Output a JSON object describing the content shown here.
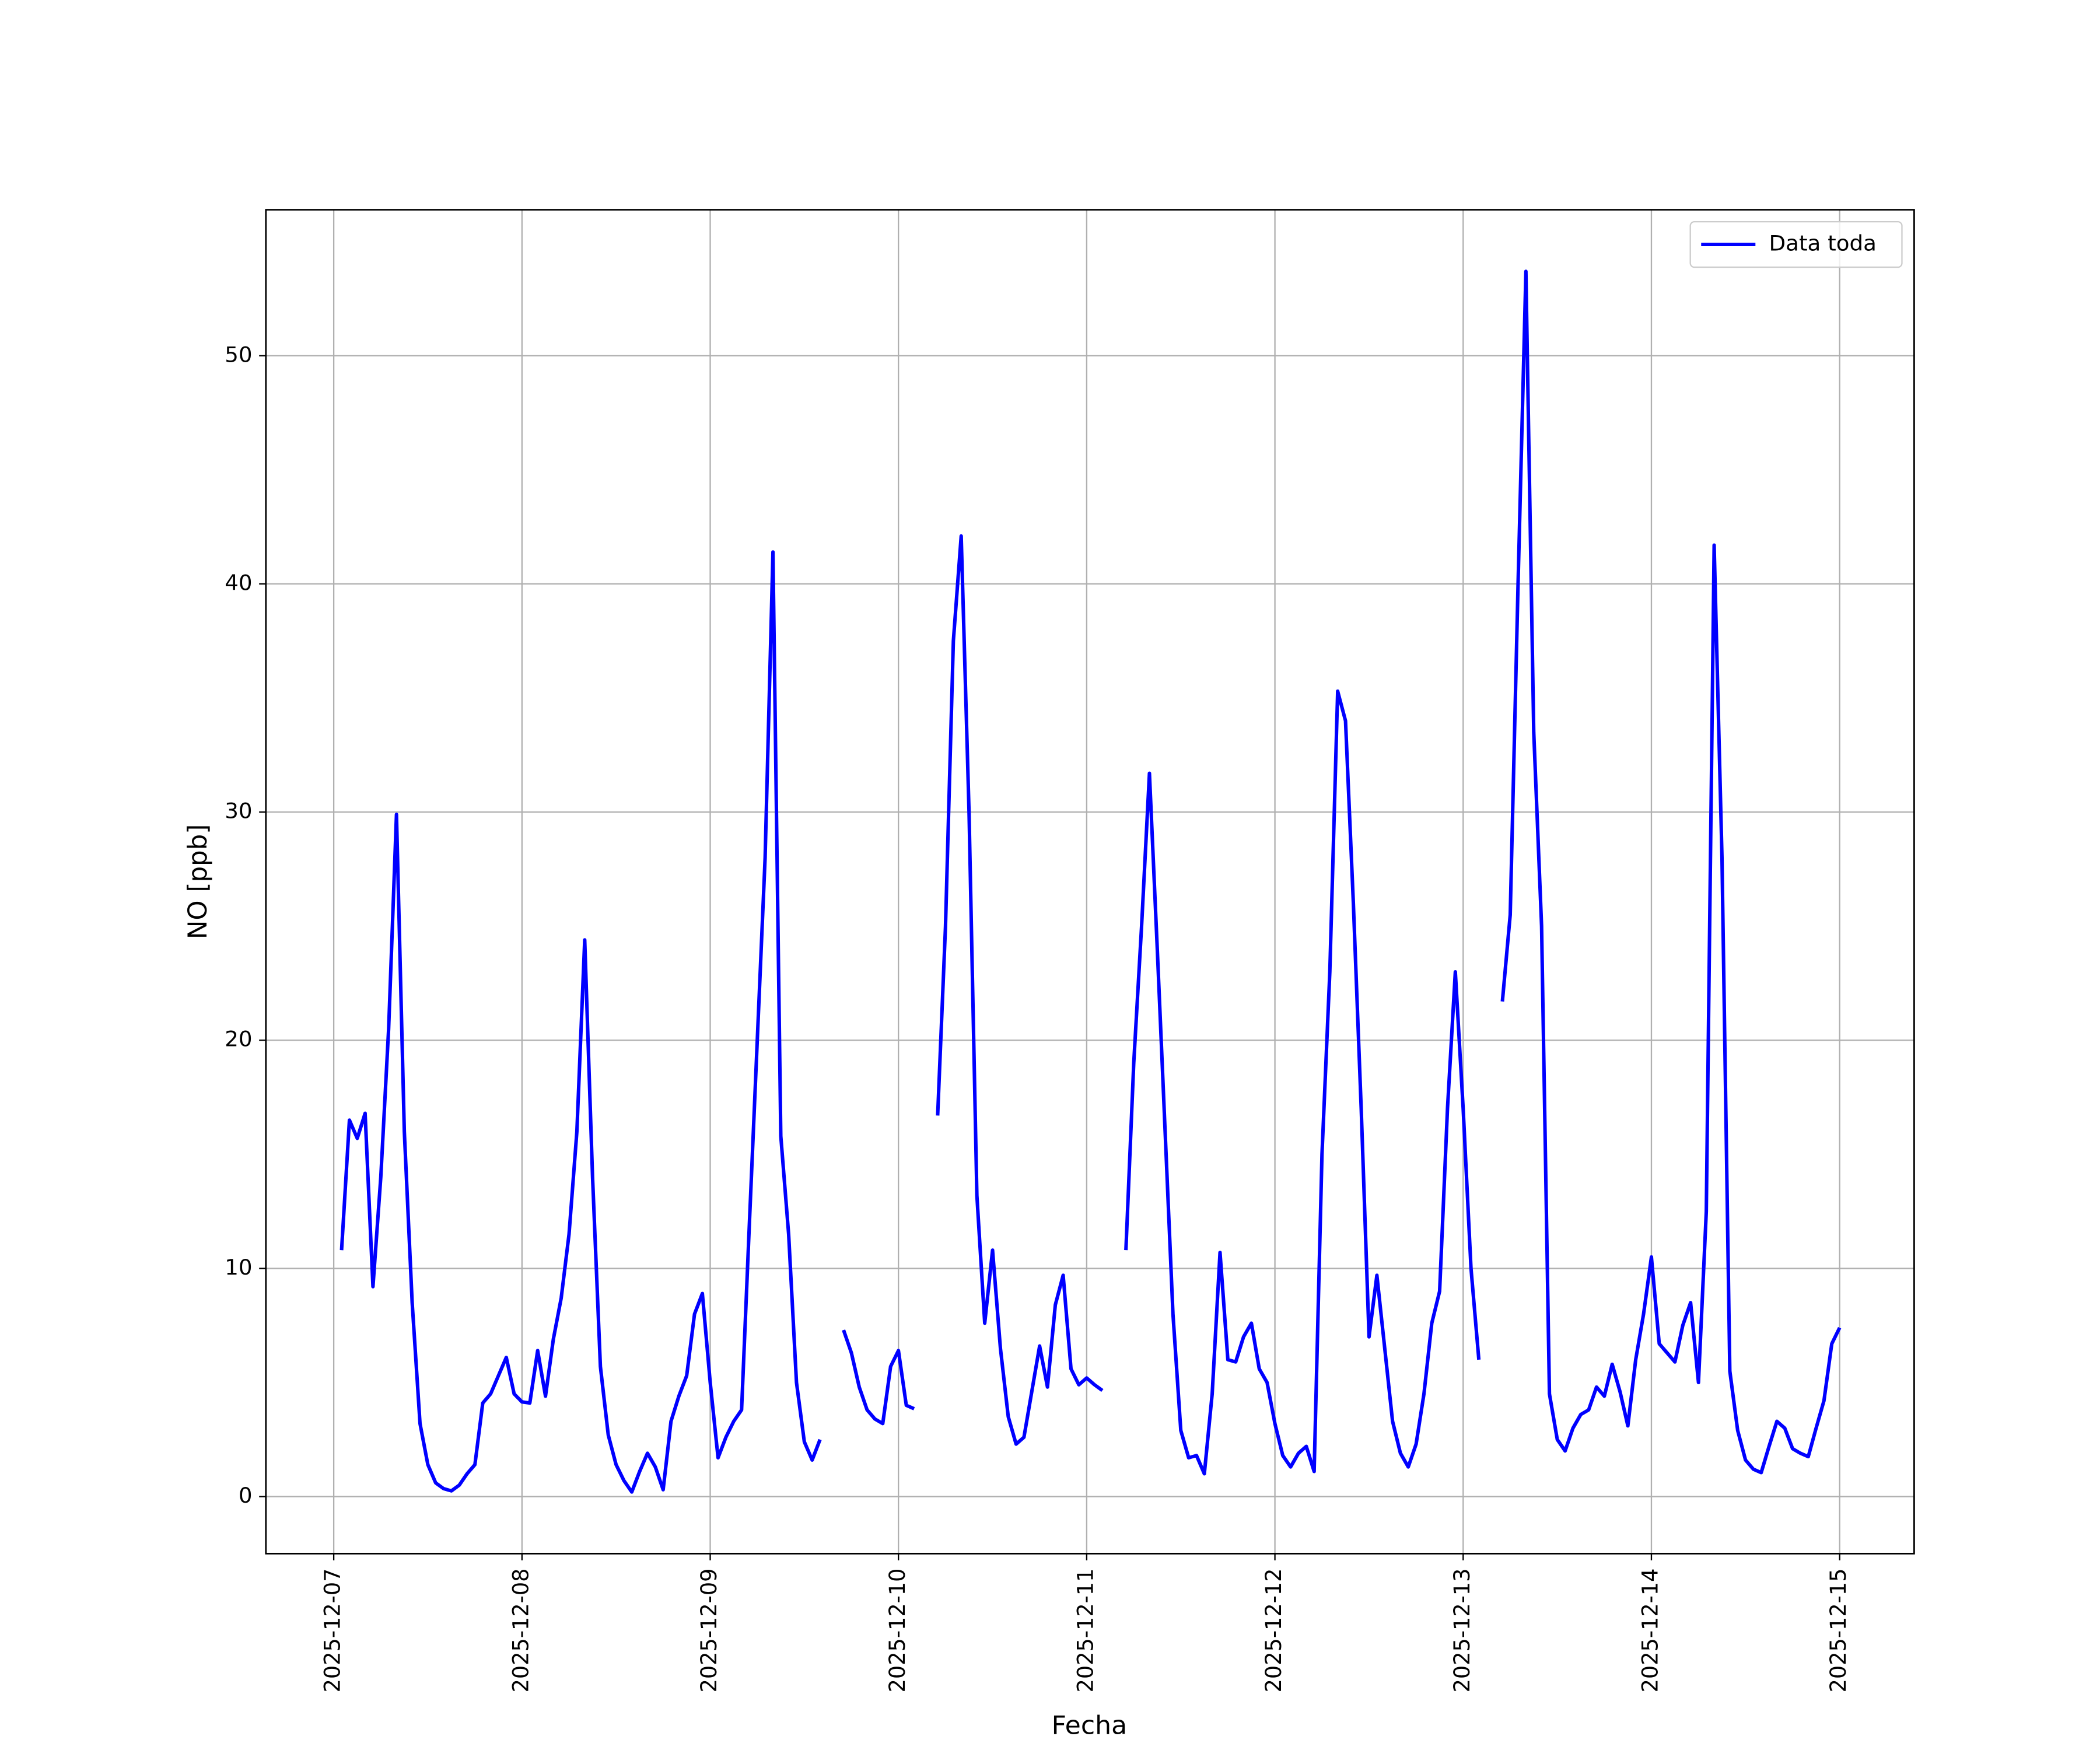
{
  "chart_data": {
    "type": "line",
    "xlabel": "Fecha",
    "ylabel": "NO [ppb]",
    "x": [
      "2025-12-07T01:00",
      "2025-12-07T02:00",
      "2025-12-07T03:00",
      "2025-12-07T04:00",
      "2025-12-07T05:00",
      "2025-12-07T06:00",
      "2025-12-07T07:00",
      "2025-12-07T08:00",
      "2025-12-07T09:00",
      "2025-12-07T10:00",
      "2025-12-07T11:00",
      "2025-12-07T12:00",
      "2025-12-07T13:00",
      "2025-12-07T14:00",
      "2025-12-07T15:00",
      "2025-12-07T16:00",
      "2025-12-07T17:00",
      "2025-12-07T18:00",
      "2025-12-07T19:00",
      "2025-12-07T20:00",
      "2025-12-07T21:00",
      "2025-12-07T22:00",
      "2025-12-07T23:00",
      "2025-12-08T00:00",
      "2025-12-08T01:00",
      "2025-12-08T02:00",
      "2025-12-08T03:00",
      "2025-12-08T04:00",
      "2025-12-08T05:00",
      "2025-12-08T06:00",
      "2025-12-08T07:00",
      "2025-12-08T08:00",
      "2025-12-08T09:00",
      "2025-12-08T10:00",
      "2025-12-08T11:00",
      "2025-12-08T12:00",
      "2025-12-08T13:00",
      "2025-12-08T14:00",
      "2025-12-08T15:00",
      "2025-12-08T16:00",
      "2025-12-08T17:00",
      "2025-12-08T18:00",
      "2025-12-08T19:00",
      "2025-12-08T20:00",
      "2025-12-08T21:00",
      "2025-12-08T22:00",
      "2025-12-08T23:00",
      "2025-12-09T00:00",
      "2025-12-09T01:00",
      "2025-12-09T02:00",
      "2025-12-09T03:00",
      "2025-12-09T04:00",
      "2025-12-09T05:00",
      "2025-12-09T06:00",
      "2025-12-09T07:00",
      "2025-12-09T08:00",
      "2025-12-09T09:00",
      "2025-12-09T10:00",
      "2025-12-09T11:00",
      "2025-12-09T12:00",
      "2025-12-09T13:00",
      "2025-12-09T14:00",
      "2025-12-09T15:00",
      "2025-12-09T16:00",
      "2025-12-09T17:00",
      "2025-12-09T18:00",
      "2025-12-09T19:00",
      "2025-12-09T20:00",
      "2025-12-09T21:00",
      "2025-12-09T22:00",
      "2025-12-09T23:00",
      "2025-12-10T00:00",
      "2025-12-10T01:00",
      "2025-12-10T02:00",
      "2025-12-10T03:00",
      "2025-12-10T04:00",
      "2025-12-10T05:00",
      "2025-12-10T06:00",
      "2025-12-10T07:00",
      "2025-12-10T08:00",
      "2025-12-10T09:00",
      "2025-12-10T10:00",
      "2025-12-10T11:00",
      "2025-12-10T12:00",
      "2025-12-10T13:00",
      "2025-12-10T14:00",
      "2025-12-10T15:00",
      "2025-12-10T16:00",
      "2025-12-10T17:00",
      "2025-12-10T18:00",
      "2025-12-10T19:00",
      "2025-12-10T20:00",
      "2025-12-10T21:00",
      "2025-12-10T22:00",
      "2025-12-10T23:00",
      "2025-12-11T00:00",
      "2025-12-11T01:00",
      "2025-12-11T02:00",
      "2025-12-11T03:00",
      "2025-12-11T04:00",
      "2025-12-11T05:00",
      "2025-12-11T06:00",
      "2025-12-11T07:00",
      "2025-12-11T08:00",
      "2025-12-11T09:00",
      "2025-12-11T10:00",
      "2025-12-11T11:00",
      "2025-12-11T12:00",
      "2025-12-11T13:00",
      "2025-12-11T14:00",
      "2025-12-11T15:00",
      "2025-12-11T16:00",
      "2025-12-11T17:00",
      "2025-12-11T18:00",
      "2025-12-11T19:00",
      "2025-12-11T20:00",
      "2025-12-11T21:00",
      "2025-12-11T22:00",
      "2025-12-11T23:00",
      "2025-12-12T00:00",
      "2025-12-12T01:00",
      "2025-12-12T02:00",
      "2025-12-12T03:00",
      "2025-12-12T04:00",
      "2025-12-12T05:00",
      "2025-12-12T06:00",
      "2025-12-12T07:00",
      "2025-12-12T08:00",
      "2025-12-12T09:00",
      "2025-12-12T10:00",
      "2025-12-12T11:00",
      "2025-12-12T12:00",
      "2025-12-12T13:00",
      "2025-12-12T14:00",
      "2025-12-12T15:00",
      "2025-12-12T16:00",
      "2025-12-12T17:00",
      "2025-12-12T18:00",
      "2025-12-12T19:00",
      "2025-12-12T20:00",
      "2025-12-12T21:00",
      "2025-12-12T22:00",
      "2025-12-12T23:00",
      "2025-12-13T00:00",
      "2025-12-13T01:00",
      "2025-12-13T02:00",
      "2025-12-13T03:00",
      "2025-12-13T04:00",
      "2025-12-13T05:00",
      "2025-12-13T06:00",
      "2025-12-13T07:00",
      "2025-12-13T08:00",
      "2025-12-13T09:00",
      "2025-12-13T10:00",
      "2025-12-13T11:00",
      "2025-12-13T12:00",
      "2025-12-13T13:00",
      "2025-12-13T14:00",
      "2025-12-13T15:00",
      "2025-12-13T16:00",
      "2025-12-13T17:00",
      "2025-12-13T18:00",
      "2025-12-13T19:00",
      "2025-12-13T20:00",
      "2025-12-13T21:00",
      "2025-12-13T22:00",
      "2025-12-13T23:00",
      "2025-12-14T00:00",
      "2025-12-14T01:00",
      "2025-12-14T02:00",
      "2025-12-14T03:00",
      "2025-12-14T04:00",
      "2025-12-14T05:00",
      "2025-12-14T06:00",
      "2025-12-14T07:00",
      "2025-12-14T08:00",
      "2025-12-14T09:00",
      "2025-12-14T10:00",
      "2025-12-14T11:00",
      "2025-12-14T12:00",
      "2025-12-14T13:00",
      "2025-12-14T14:00",
      "2025-12-14T15:00",
      "2025-12-14T16:00",
      "2025-12-14T17:00",
      "2025-12-14T18:00",
      "2025-12-14T19:00",
      "2025-12-14T20:00",
      "2025-12-14T21:00",
      "2025-12-14T22:00",
      "2025-12-14T23:00",
      "2025-12-15T00:00"
    ],
    "series": [
      {
        "name": "Data toda",
        "color": "#0000ff",
        "values": [
          10.8,
          16.5,
          15.7,
          16.8,
          9.2,
          14,
          20.5,
          29.9,
          16,
          8.5,
          3.2,
          1.4,
          0.6,
          0.35,
          0.25,
          0.5,
          1.0,
          1.4,
          4.1,
          4.5,
          5.3,
          6.1,
          4.5,
          4.15,
          4.1,
          6.4,
          4.4,
          6.9,
          8.7,
          11.5,
          16,
          24.4,
          14,
          5.7,
          2.7,
          1.4,
          0.7,
          0.2,
          1.1,
          1.9,
          1.3,
          0.3,
          3.3,
          4.4,
          5.3,
          8,
          8.9,
          5,
          1.7,
          2.6,
          3.3,
          3.8,
          12,
          20,
          28,
          41.4,
          15.8,
          11.5,
          5,
          2.4,
          1.6,
          2.5,
          null,
          null,
          7.3,
          6.3,
          4.8,
          3.8,
          3.4,
          3.2,
          5.7,
          6.4,
          4,
          3.85,
          null,
          null,
          16.7,
          25,
          37.5,
          42.1,
          30,
          13.2,
          7.6,
          10.8,
          6.5,
          3.5,
          2.3,
          2.6,
          4.6,
          6.6,
          4.8,
          8.4,
          9.7,
          5.6,
          4.9,
          5.2,
          4.9,
          4.65,
          null,
          null,
          10.8,
          19,
          25,
          31.7,
          24,
          16,
          8,
          2.9,
          1.7,
          1.8,
          1.0,
          4.5,
          10.7,
          6,
          5.9,
          7,
          7.6,
          5.6,
          5,
          3.2,
          1.8,
          1.3,
          1.9,
          2.2,
          1.1,
          15,
          23,
          35.3,
          34,
          26,
          17,
          7,
          9.7,
          6.5,
          3.3,
          1.9,
          1.3,
          2.3,
          4.5,
          7.6,
          9,
          17,
          23,
          17,
          10,
          6,
          null,
          null,
          21.7,
          25.5,
          40,
          53.7,
          33.5,
          25,
          4.5,
          2.5,
          2,
          3,
          3.6,
          3.8,
          4.8,
          4.4,
          5.8,
          4.6,
          3.1,
          6,
          8,
          10.5,
          6.7,
          6.3,
          5.9,
          7.5,
          8.5,
          5,
          12.5,
          41.7,
          28,
          5.5,
          2.9,
          1.6,
          1.2,
          1.05,
          2.2,
          3.3,
          3,
          2.1,
          1.9,
          1.75,
          3,
          4.2,
          6.7,
          7.4
        ]
      }
    ],
    "xlim": [
      "2025-12-06T15:21",
      "2025-12-15T09:30"
    ],
    "xticks": [
      "2025-12-07",
      "2025-12-08",
      "2025-12-09",
      "2025-12-10",
      "2025-12-11",
      "2025-12-12",
      "2025-12-13",
      "2025-12-14",
      "2025-12-15"
    ],
    "ylim": [
      -2.5,
      56.4
    ],
    "yticks": [
      0,
      10,
      20,
      30,
      40,
      50
    ],
    "grid": true,
    "legend": "upper right"
  }
}
